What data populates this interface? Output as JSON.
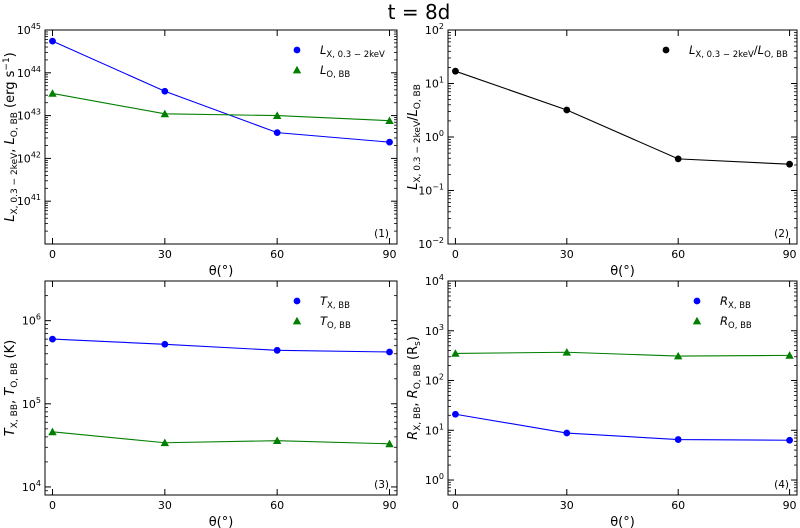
{
  "figure": {
    "title": "t = 8d",
    "xlabel": "θ(°)"
  },
  "chart_data": [
    {
      "type": "line",
      "panel": "(1)",
      "ylabel": "L_X,0.3-2keV, L_O,BB (erg s^-1)",
      "yscale": "log",
      "ylim": [
        1e+40,
        1e+45
      ],
      "xlim": [
        -2,
        92
      ],
      "x": [
        0,
        30,
        60,
        90
      ],
      "xticks": [
        0,
        30,
        60,
        90
      ],
      "yticks": [
        {
          "value": 1e+41,
          "base": "10",
          "exp": "41"
        },
        {
          "value": 1e+42,
          "base": "10",
          "exp": "42"
        },
        {
          "value": 1e+43,
          "base": "10",
          "exp": "43"
        },
        {
          "value": 1e+44,
          "base": "10",
          "exp": "44"
        },
        {
          "value": 1e+45,
          "base": "10",
          "exp": "45"
        }
      ],
      "legend_position": "top-right",
      "series": [
        {
          "name": "L_X,0.3-2keV",
          "color": "#0000ff",
          "marker": "circle",
          "values": [
            5.5e+44,
            3.7e+43,
            4e+42,
            2.4e+42
          ]
        },
        {
          "name": "L_O,BB",
          "color": "#007f00",
          "marker": "triangle",
          "values": [
            3.3e+43,
            1.1e+43,
            1e+43,
            7.6e+42
          ]
        }
      ]
    },
    {
      "type": "line",
      "panel": "(2)",
      "ylabel": "L_X,0.3-2keV/L_O,BB",
      "yscale": "log",
      "ylim": [
        0.01,
        100
      ],
      "xlim": [
        -2,
        92
      ],
      "x": [
        0,
        30,
        60,
        90
      ],
      "xticks": [
        0,
        30,
        60,
        90
      ],
      "yticks": [
        {
          "value": 0.01,
          "base": "10",
          "exp": "−2"
        },
        {
          "value": 0.1,
          "base": "10",
          "exp": "−1"
        },
        {
          "value": 1,
          "base": "10",
          "exp": "0"
        },
        {
          "value": 10,
          "base": "10",
          "exp": "1"
        },
        {
          "value": 100,
          "base": "10",
          "exp": "2"
        }
      ],
      "legend_position": "top-right",
      "series": [
        {
          "name": "L_X,0.3-2keV/L_O,BB",
          "color": "#000000",
          "marker": "circle",
          "values": [
            17,
            3.2,
            0.39,
            0.31
          ]
        }
      ]
    },
    {
      "type": "line",
      "panel": "(3)",
      "ylabel": "T_X,BB, T_O,BB (K)",
      "yscale": "log",
      "ylim": [
        8000,
        3000000
      ],
      "xlim": [
        -2,
        92
      ],
      "x": [
        0,
        30,
        60,
        90
      ],
      "xticks": [
        0,
        30,
        60,
        90
      ],
      "yticks": [
        {
          "value": 10000,
          "base": "10",
          "exp": "4"
        },
        {
          "value": 100000,
          "base": "10",
          "exp": "5"
        },
        {
          "value": 1000000,
          "base": "10",
          "exp": "6"
        }
      ],
      "legend_position": "top-right",
      "series": [
        {
          "name": "T_X,BB",
          "color": "#0000ff",
          "marker": "circle",
          "values": [
            600000,
            520000,
            440000,
            420000
          ]
        },
        {
          "name": "T_O,BB",
          "color": "#007f00",
          "marker": "triangle",
          "values": [
            46000,
            34000,
            36000,
            33000
          ]
        }
      ]
    },
    {
      "type": "line",
      "panel": "(4)",
      "ylabel": "R_X,BB, R_O,BB (R_s)",
      "yscale": "log",
      "ylim": [
        0.5,
        10000
      ],
      "xlim": [
        -2,
        92
      ],
      "x": [
        0,
        30,
        60,
        90
      ],
      "xticks": [
        0,
        30,
        60,
        90
      ],
      "yticks": [
        {
          "value": 1,
          "base": "10",
          "exp": "0"
        },
        {
          "value": 10,
          "base": "10",
          "exp": "1"
        },
        {
          "value": 100,
          "base": "10",
          "exp": "2"
        },
        {
          "value": 1000,
          "base": "10",
          "exp": "3"
        },
        {
          "value": 10000,
          "base": "10",
          "exp": "4"
        }
      ],
      "legend_position": "top-right",
      "series": [
        {
          "name": "R_X,BB",
          "color": "#0000ff",
          "marker": "circle",
          "values": [
            21,
            8.8,
            6.5,
            6.3
          ]
        },
        {
          "name": "R_O,BB",
          "color": "#007f00",
          "marker": "triangle",
          "values": [
            350,
            370,
            310,
            320
          ]
        }
      ]
    }
  ]
}
